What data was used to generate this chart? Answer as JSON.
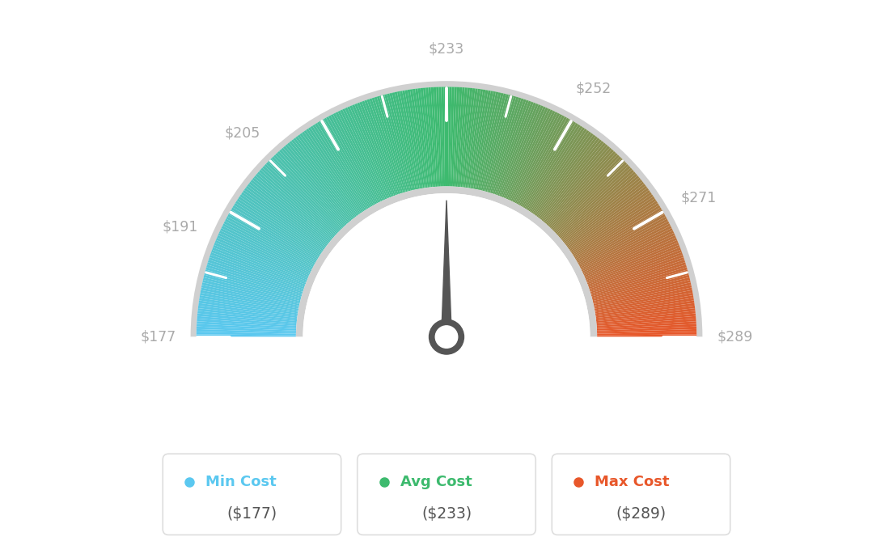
{
  "min_val": 177,
  "max_val": 289,
  "avg_val": 233,
  "tick_values": [
    177,
    191,
    205,
    233,
    252,
    271,
    289
  ],
  "tick_labels": [
    "$177",
    "$191",
    "$205",
    "$233",
    "$252",
    "$271",
    "$289"
  ],
  "color_min": "#5bc8f0",
  "color_avg": "#3dba6e",
  "color_max": "#e8572a",
  "color_legend_min": "#5bc8f0",
  "color_legend_avg": "#3dba6e",
  "color_legend_max": "#e8572a",
  "legend_min_label": "Min Cost",
  "legend_avg_label": "Avg Cost",
  "legend_max_label": "Max Cost",
  "legend_min_val": "($177)",
  "legend_avg_val": "($233)",
  "legend_max_val": "($289)",
  "bg_color": "#ffffff",
  "needle_color": "#555555",
  "label_color": "#aaaaaa",
  "legend_text_color": "#555555",
  "outer_border_color": "#d0d0d0",
  "inner_border_color": "#d0d0d0"
}
